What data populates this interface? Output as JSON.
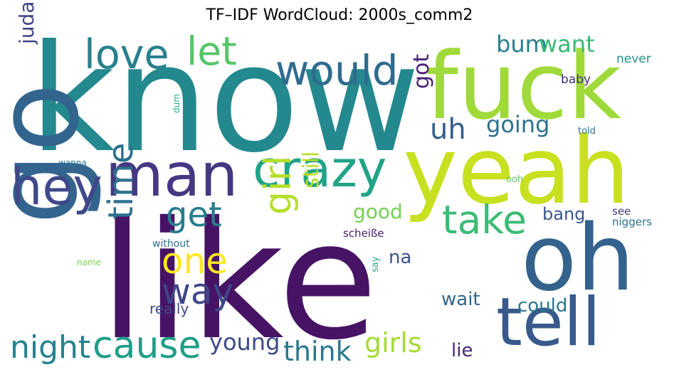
{
  "chart_data": {
    "type": "wordcloud",
    "title": "TF–IDF WordCloud: 2000s_comm2",
    "colormap": "viridis",
    "words": [
      {
        "text": "know",
        "color": "#23898e",
        "rot": 0
      },
      {
        "text": "like",
        "color": "#471365",
        "rot": 0
      },
      {
        "text": "fuck",
        "color": "#9fda3a",
        "rot": 0
      },
      {
        "text": "yeah",
        "color": "#c8e020",
        "rot": 0
      },
      {
        "text": "oh",
        "color": "#33638d",
        "rot": 0
      },
      {
        "text": "tell",
        "color": "#38598c",
        "rot": 0
      },
      {
        "text": "go",
        "color": "#32648e",
        "rot": 90
      },
      {
        "text": "man",
        "color": "#453781",
        "rot": 0
      },
      {
        "text": "crazy",
        "color": "#20a386",
        "rot": 0
      },
      {
        "text": "hey",
        "color": "#3f4889",
        "rot": 0
      },
      {
        "text": "would",
        "color": "#2f6b8e",
        "rot": 0
      },
      {
        "text": "love",
        "color": "#27808e",
        "rot": 0
      },
      {
        "text": "let",
        "color": "#56c667",
        "rot": 0
      },
      {
        "text": "take",
        "color": "#3bbb75",
        "rot": 0
      },
      {
        "text": "cause",
        "color": "#1f9e89",
        "rot": 0
      },
      {
        "text": "girl",
        "color": "#b5de2b",
        "rot": 90
      },
      {
        "text": "get",
        "color": "#287d8e",
        "rot": 0
      },
      {
        "text": "time",
        "color": "#2d708e",
        "rot": 90
      },
      {
        "text": "one",
        "color": "#fde725",
        "rot": 0
      },
      {
        "text": "way",
        "color": "#404688",
        "rot": 0
      },
      {
        "text": "night",
        "color": "#26828e",
        "rot": 0
      },
      {
        "text": "think",
        "color": "#2a788e",
        "rot": 0
      },
      {
        "text": "girls",
        "color": "#a5db36",
        "rot": 0
      },
      {
        "text": "young",
        "color": "#3e4989",
        "rot": 0
      },
      {
        "text": "bum",
        "color": "#277f8e",
        "rot": 0
      },
      {
        "text": "want",
        "color": "#3aba76",
        "rot": 0
      },
      {
        "text": "uh",
        "color": "#355f8d",
        "rot": 0
      },
      {
        "text": "going",
        "color": "#2c728e",
        "rot": 0
      },
      {
        "text": "got",
        "color": "#482173",
        "rot": 90
      },
      {
        "text": "judas",
        "color": "#414487",
        "rot": 90
      },
      {
        "text": "good",
        "color": "#75d054",
        "rot": 0
      },
      {
        "text": "still",
        "color": "#bade28",
        "rot": 90
      },
      {
        "text": "bang",
        "color": "#39568c",
        "rot": 0
      },
      {
        "text": "na",
        "color": "#3b528b",
        "rot": 0
      },
      {
        "text": "wait",
        "color": "#31668e",
        "rot": 0
      },
      {
        "text": "could",
        "color": "#2a788e",
        "rot": 0
      },
      {
        "text": "lie",
        "color": "#482878",
        "rot": 0
      },
      {
        "text": "really",
        "color": "#3e4a89",
        "rot": 0
      },
      {
        "text": "never",
        "color": "#21918c",
        "rot": 0
      },
      {
        "text": "baby",
        "color": "#472d7b",
        "rot": 0
      },
      {
        "text": "told",
        "color": "#2d708e",
        "rot": 0
      },
      {
        "text": "ooh",
        "color": "#5ec962",
        "rot": 0
      },
      {
        "text": "see",
        "color": "#443983",
        "rot": 0
      },
      {
        "text": "niggers",
        "color": "#2c738e",
        "rot": 0
      },
      {
        "text": "scheiße",
        "color": "#482173",
        "rot": 0
      },
      {
        "text": "without",
        "color": "#2e6f8e",
        "rot": 0
      },
      {
        "text": "name",
        "color": "#7ad151",
        "rot": 0
      },
      {
        "text": "say",
        "color": "#26ad81",
        "rot": 90
      },
      {
        "text": "wanna",
        "color": "#2b748e",
        "rot": 0
      },
      {
        "text": "dum",
        "color": "#22a884",
        "rot": 90
      }
    ]
  }
}
